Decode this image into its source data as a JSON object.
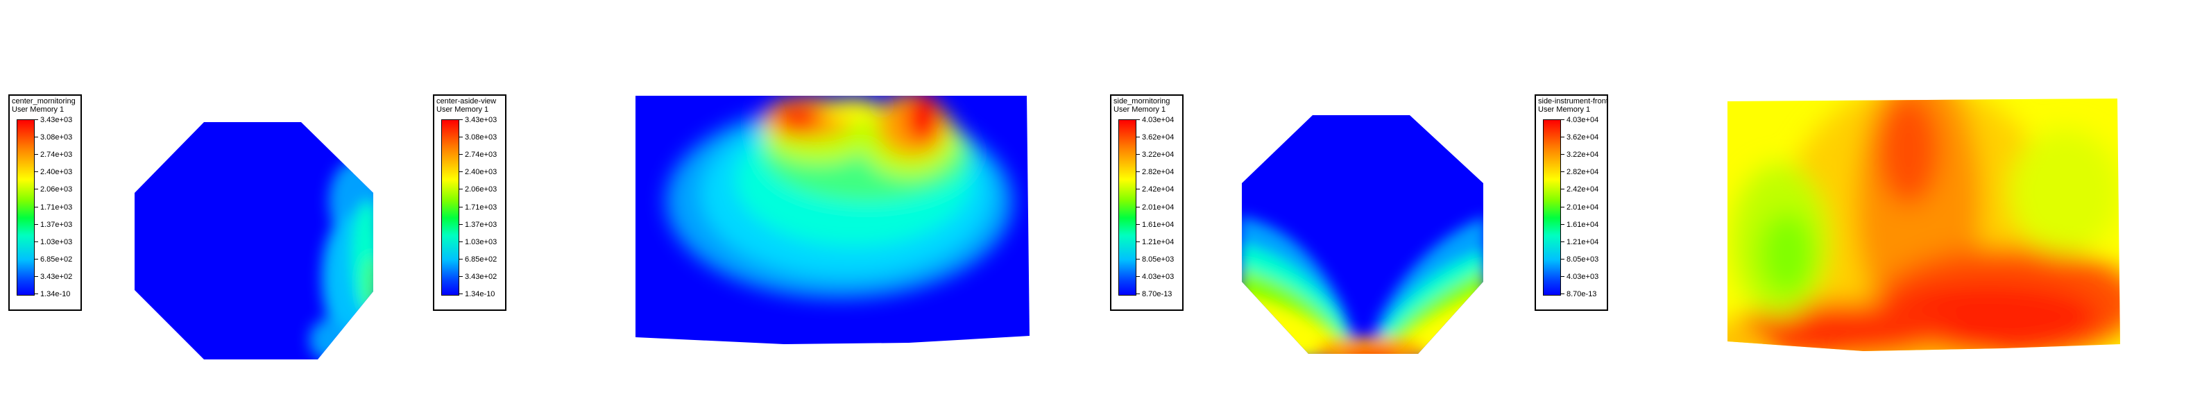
{
  "chart_data": [
    {
      "type": "heatmap",
      "title": "center_mornitoring",
      "subtitle": "User Memory 1",
      "colorbar_ticks": [
        "3.43e+03",
        "3.08e+03",
        "2.74e+03",
        "2.40e+03",
        "2.06e+03",
        "1.71e+03",
        "1.37e+03",
        "1.03e+03",
        "6.85e+02",
        "3.43e+02",
        "1.34e-10"
      ],
      "range": [
        1.34e-10,
        3430
      ],
      "colormap": [
        "#0000ff",
        "#00ffff",
        "#00ff00",
        "#ffff00",
        "#ff0000"
      ],
      "shape": "octagon"
    },
    {
      "type": "heatmap",
      "title": "center-aside-view",
      "subtitle": "User Memory 1",
      "colorbar_ticks": [
        "3.43e+03",
        "3.08e+03",
        "2.74e+03",
        "2.40e+03",
        "2.06e+03",
        "1.71e+03",
        "1.37e+03",
        "1.03e+03",
        "6.85e+02",
        "3.43e+02",
        "1.34e-10"
      ],
      "range": [
        1.34e-10,
        3430
      ],
      "colormap": [
        "#0000ff",
        "#00ffff",
        "#00ff00",
        "#ffff00",
        "#ff0000"
      ],
      "shape": "rectangle"
    },
    {
      "type": "heatmap",
      "title": "side_mornitoring",
      "subtitle": "User Memory 1",
      "colorbar_ticks": [
        "4.03e+04",
        "3.62e+04",
        "3.22e+04",
        "2.82e+04",
        "2.42e+04",
        "2.01e+04",
        "1.61e+04",
        "1.21e+04",
        "8.05e+03",
        "4.03e+03",
        "8.70e-13"
      ],
      "range": [
        8.7e-13,
        40300
      ],
      "colormap": [
        "#0000ff",
        "#00ffff",
        "#00ff00",
        "#ffff00",
        "#ff0000"
      ],
      "shape": "octagon"
    },
    {
      "type": "heatmap",
      "title": "side-instrument-front",
      "subtitle": "User Memory 1",
      "colorbar_ticks": [
        "4.03e+04",
        "3.62e+04",
        "3.22e+04",
        "2.82e+04",
        "2.42e+04",
        "2.01e+04",
        "1.61e+04",
        "1.21e+04",
        "8.05e+03",
        "4.03e+03",
        "8.70e-13"
      ],
      "range": [
        8.7e-13,
        40300
      ],
      "colormap": [
        "#0000ff",
        "#00ffff",
        "#00ff00",
        "#ffff00",
        "#ff0000"
      ],
      "shape": "rectangle"
    }
  ]
}
